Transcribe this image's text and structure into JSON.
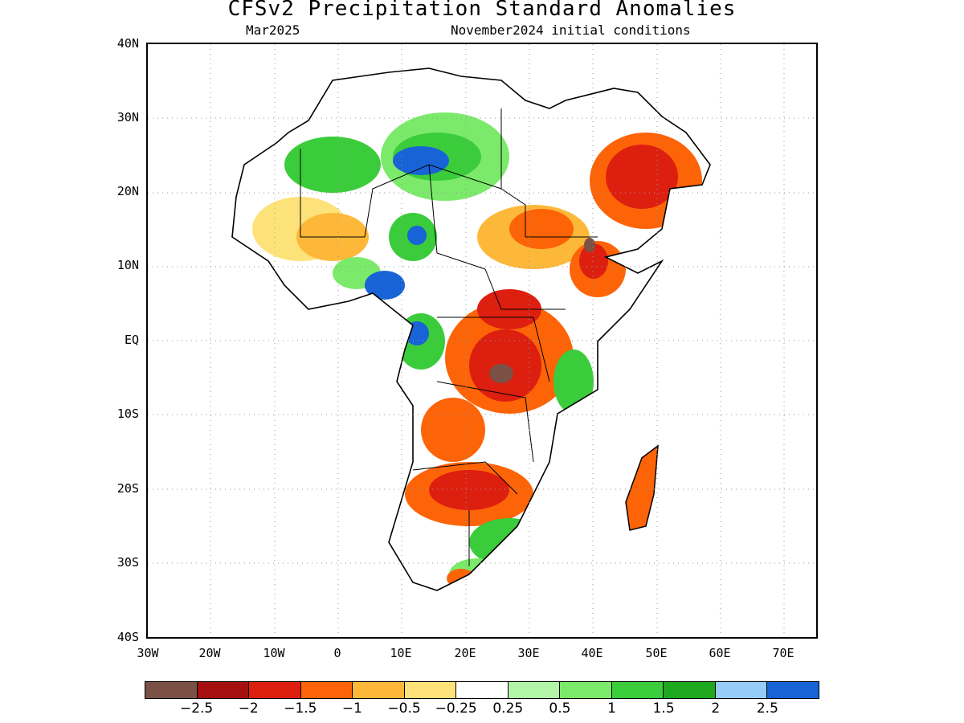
{
  "title": "CFSv2 Precipitation Standard Anomalies",
  "subtitle_left": "Mar2025",
  "subtitle_right": "November2024 initial conditions",
  "lat_labels": [
    "40N",
    "30N",
    "20N",
    "10N",
    "EQ",
    "10S",
    "20S",
    "30S",
    "40S"
  ],
  "lon_labels": [
    "30W",
    "20W",
    "10W",
    "0",
    "10E",
    "20E",
    "30E",
    "40E",
    "50E",
    "60E",
    "70E"
  ],
  "colorbar": {
    "colors": [
      "#7a5144",
      "#a50f0f",
      "#dd1f10",
      "#fd6408",
      "#fdb83a",
      "#fde27a",
      "#ffffff",
      "#b3f5a8",
      "#7bea6a",
      "#3bcc3b",
      "#1ea81e",
      "#95cdf8",
      "#1863d6"
    ],
    "labels": [
      "−2.5",
      "−2",
      "−1.5",
      "−1",
      "−0.5",
      "−0.25",
      "0.25",
      "0.5",
      "1",
      "1.5",
      "2",
      "2.5"
    ]
  },
  "map": {
    "lat_range": [
      -40,
      40
    ],
    "lon_range": [
      -30,
      75
    ]
  }
}
